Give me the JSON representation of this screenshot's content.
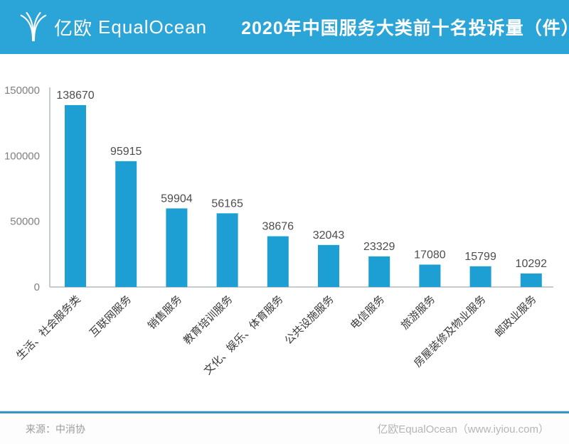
{
  "header": {
    "logo_cn": "亿欧",
    "logo_en": "EqualOcean",
    "title": "2020年中国服务大类前十名投诉量（件）"
  },
  "icons": {
    "logo": "equalocean-logo-icon"
  },
  "chart_data": {
    "type": "bar",
    "title": "2020年中国服务大类前十名投诉量（件）",
    "categories": [
      "生活、社会服务类",
      "互联网服务",
      "销售服务",
      "教育培训服务",
      "文化、娱乐、体育服务",
      "公共设施服务",
      "电信服务",
      "旅游服务",
      "房屋装修及物业服务",
      "邮政业服务"
    ],
    "values": [
      138670,
      95915,
      59904,
      56165,
      38676,
      32043,
      23329,
      17080,
      15799,
      10292
    ],
    "xlabel": "",
    "ylabel": "",
    "ylim": [
      0,
      150000
    ],
    "yticks": [
      0,
      50000,
      100000,
      150000
    ],
    "grid": false,
    "legend": "none",
    "value_labels": true,
    "category_label_rotation_deg": -45
  },
  "footer": {
    "source": "来源：中消协",
    "credit": "亿欧EqualOcean（www.iyiou.com）"
  },
  "colors": {
    "header_bg": "#2BA4D8",
    "bar": "#1E9FD3",
    "axis_line": "#C6CBCE",
    "tick_text": "#808080",
    "value_text": "#4D4D4D",
    "category_text": "#3A3A3A",
    "separator_dark": "#3D91C5",
    "separator_light": "#CFE6F4"
  }
}
